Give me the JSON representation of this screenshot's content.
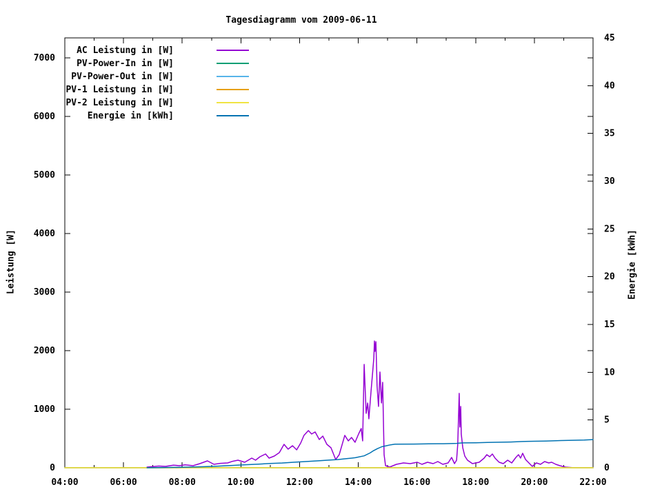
{
  "title": "Tagesdiagramm vom 2009-06-11",
  "colors": {
    "background": "#ffffff",
    "text": "#000000",
    "axis": "#000000"
  },
  "chart_data": {
    "type": "line",
    "title": "Tagesdiagramm vom 2009-06-11",
    "grid": false,
    "legend_position": "top-left-inside",
    "x_axis": {
      "label": "",
      "range_hours": [
        4,
        22
      ],
      "tick_hours": [
        4,
        6,
        8,
        10,
        12,
        14,
        16,
        18,
        20,
        22
      ],
      "tick_labels": [
        "04:00",
        "06:00",
        "08:00",
        "10:00",
        "12:00",
        "14:00",
        "16:00",
        "18:00",
        "20:00",
        "22:00"
      ],
      "minor_tick_every_hours": 1
    },
    "y_axis": {
      "label": "Leistung [W]",
      "tick_values": [
        0,
        1000,
        2000,
        3000,
        4000,
        5000,
        6000,
        7000
      ],
      "range": [
        0,
        7340
      ]
    },
    "y2_axis": {
      "label": "Energie [kWh]",
      "tick_values": [
        0,
        5,
        10,
        15,
        20,
        25,
        30,
        35,
        40,
        45
      ],
      "range": [
        0,
        45
      ]
    },
    "legend": [
      {
        "label": "AC Leistung in [W]",
        "color": "#9400d3",
        "series": "ac_leistung"
      },
      {
        "label": "PV-Power-In in [W]",
        "color": "#009e73",
        "series": "pv_power_in"
      },
      {
        "label": "PV-Power-Out in [W]",
        "color": "#56b4e9",
        "series": "pv_power_out"
      },
      {
        "label": "PV-1 Leistung in [W]",
        "color": "#e69f00",
        "series": "pv1_leistung"
      },
      {
        "label": "PV-2 Leistung in [W]",
        "color": "#f0e442",
        "series": "pv2_leistung"
      },
      {
        "label": "Energie in [kWh]",
        "color": "#0072b2",
        "series": "energie"
      }
    ],
    "series": {
      "ac_leistung": {
        "axis": "y",
        "color": "#9400d3",
        "unit": "W",
        "points": [
          [
            6.8,
            12
          ],
          [
            7.0,
            20
          ],
          [
            7.2,
            30
          ],
          [
            7.43,
            24
          ],
          [
            7.7,
            45
          ],
          [
            7.9,
            35
          ],
          [
            8.1,
            50
          ],
          [
            8.37,
            35
          ],
          [
            8.6,
            70
          ],
          [
            8.86,
            118
          ],
          [
            9.08,
            59
          ],
          [
            9.3,
            75
          ],
          [
            9.55,
            82
          ],
          [
            9.72,
            110
          ],
          [
            9.9,
            129
          ],
          [
            10.13,
            94
          ],
          [
            10.37,
            165
          ],
          [
            10.5,
            130
          ],
          [
            10.65,
            188
          ],
          [
            10.84,
            235
          ],
          [
            10.96,
            165
          ],
          [
            11.14,
            200
          ],
          [
            11.31,
            259
          ],
          [
            11.47,
            400
          ],
          [
            11.61,
            318
          ],
          [
            11.76,
            376
          ],
          [
            11.9,
            306
          ],
          [
            12.04,
            424
          ],
          [
            12.15,
            553
          ],
          [
            12.3,
            635
          ],
          [
            12.41,
            576
          ],
          [
            12.53,
            612
          ],
          [
            12.67,
            482
          ],
          [
            12.79,
            541
          ],
          [
            12.93,
            400
          ],
          [
            13.07,
            341
          ],
          [
            13.23,
            141
          ],
          [
            13.35,
            224
          ],
          [
            13.54,
            553
          ],
          [
            13.66,
            459
          ],
          [
            13.77,
            518
          ],
          [
            13.89,
            435
          ],
          [
            14.01,
            576
          ],
          [
            14.1,
            671
          ],
          [
            14.15,
            459
          ],
          [
            14.2,
            1765
          ],
          [
            14.27,
            929
          ],
          [
            14.32,
            1106
          ],
          [
            14.36,
            835
          ],
          [
            14.43,
            1282
          ],
          [
            14.48,
            1576
          ],
          [
            14.53,
            1871
          ],
          [
            14.55,
            2165
          ],
          [
            14.57,
            1988
          ],
          [
            14.6,
            2153
          ],
          [
            14.64,
            1400
          ],
          [
            14.69,
            1047
          ],
          [
            14.74,
            1635
          ],
          [
            14.79,
            1106
          ],
          [
            14.83,
            1459
          ],
          [
            14.86,
            694
          ],
          [
            14.88,
            224
          ],
          [
            14.93,
            35
          ],
          [
            15.07,
            12
          ],
          [
            15.3,
            59
          ],
          [
            15.54,
            82
          ],
          [
            15.77,
            71
          ],
          [
            16.01,
            94
          ],
          [
            16.17,
            59
          ],
          [
            16.36,
            94
          ],
          [
            16.55,
            71
          ],
          [
            16.71,
            106
          ],
          [
            16.88,
            59
          ],
          [
            17.06,
            82
          ],
          [
            17.18,
            176
          ],
          [
            17.28,
            71
          ],
          [
            17.35,
            129
          ],
          [
            17.39,
            400
          ],
          [
            17.44,
            1271
          ],
          [
            17.46,
            694
          ],
          [
            17.49,
            1047
          ],
          [
            17.51,
            576
          ],
          [
            17.56,
            341
          ],
          [
            17.63,
            200
          ],
          [
            17.72,
            129
          ],
          [
            17.89,
            71
          ],
          [
            18.12,
            94
          ],
          [
            18.29,
            165
          ],
          [
            18.38,
            224
          ],
          [
            18.48,
            188
          ],
          [
            18.57,
            235
          ],
          [
            18.66,
            165
          ],
          [
            18.8,
            94
          ],
          [
            18.94,
            71
          ],
          [
            19.09,
            129
          ],
          [
            19.23,
            82
          ],
          [
            19.37,
            176
          ],
          [
            19.46,
            224
          ],
          [
            19.53,
            165
          ],
          [
            19.6,
            247
          ],
          [
            19.7,
            141
          ],
          [
            19.79,
            94
          ],
          [
            19.93,
            24
          ],
          [
            20.07,
            82
          ],
          [
            20.21,
            59
          ],
          [
            20.35,
            106
          ],
          [
            20.49,
            82
          ],
          [
            20.59,
            94
          ],
          [
            20.73,
            59
          ],
          [
            20.87,
            35
          ],
          [
            21.06,
            12
          ],
          [
            21.29,
            2
          ],
          [
            21.6,
            0
          ],
          [
            22.0,
            0
          ]
        ]
      },
      "pv_power_in": {
        "axis": "y",
        "color": "#009e73",
        "unit": "W",
        "flat_zero": true,
        "points": [
          [
            4,
            0
          ],
          [
            22,
            0
          ]
        ]
      },
      "pv_power_out": {
        "axis": "y",
        "color": "#56b4e9",
        "unit": "W",
        "flat_zero": true,
        "points": [
          [
            4,
            0
          ],
          [
            22,
            0
          ]
        ]
      },
      "pv1_leistung": {
        "axis": "y",
        "color": "#e69f00",
        "unit": "W",
        "flat_zero": true,
        "points": [
          [
            4,
            0
          ],
          [
            22,
            0
          ]
        ]
      },
      "pv2_leistung": {
        "axis": "y",
        "color": "#f0e442",
        "unit": "W",
        "flat_zero": true,
        "points": [
          [
            4,
            0
          ],
          [
            22,
            0
          ]
        ]
      },
      "energie": {
        "axis": "y2",
        "color": "#0072b2",
        "unit": "kWh",
        "points": [
          [
            6.8,
            0.0
          ],
          [
            8.0,
            0.05
          ],
          [
            8.6,
            0.1
          ],
          [
            9.1,
            0.15
          ],
          [
            9.6,
            0.22
          ],
          [
            10.1,
            0.3
          ],
          [
            10.6,
            0.38
          ],
          [
            11.0,
            0.45
          ],
          [
            11.4,
            0.5
          ],
          [
            11.8,
            0.58
          ],
          [
            12.2,
            0.65
          ],
          [
            12.6,
            0.72
          ],
          [
            13.0,
            0.8
          ],
          [
            13.3,
            0.86
          ],
          [
            13.6,
            0.95
          ],
          [
            13.9,
            1.05
          ],
          [
            14.2,
            1.25
          ],
          [
            14.4,
            1.55
          ],
          [
            14.5,
            1.75
          ],
          [
            14.65,
            2.0
          ],
          [
            14.8,
            2.2
          ],
          [
            14.95,
            2.3
          ],
          [
            15.1,
            2.4
          ],
          [
            15.25,
            2.47
          ],
          [
            15.9,
            2.48
          ],
          [
            16.4,
            2.5
          ],
          [
            16.9,
            2.52
          ],
          [
            17.35,
            2.55
          ],
          [
            17.55,
            2.6
          ],
          [
            18.0,
            2.62
          ],
          [
            18.4,
            2.65
          ],
          [
            18.7,
            2.67
          ],
          [
            19.2,
            2.7
          ],
          [
            19.6,
            2.75
          ],
          [
            20.0,
            2.78
          ],
          [
            20.4,
            2.8
          ],
          [
            20.9,
            2.85
          ],
          [
            21.3,
            2.88
          ],
          [
            21.7,
            2.9
          ],
          [
            22.0,
            2.95
          ]
        ]
      }
    }
  }
}
